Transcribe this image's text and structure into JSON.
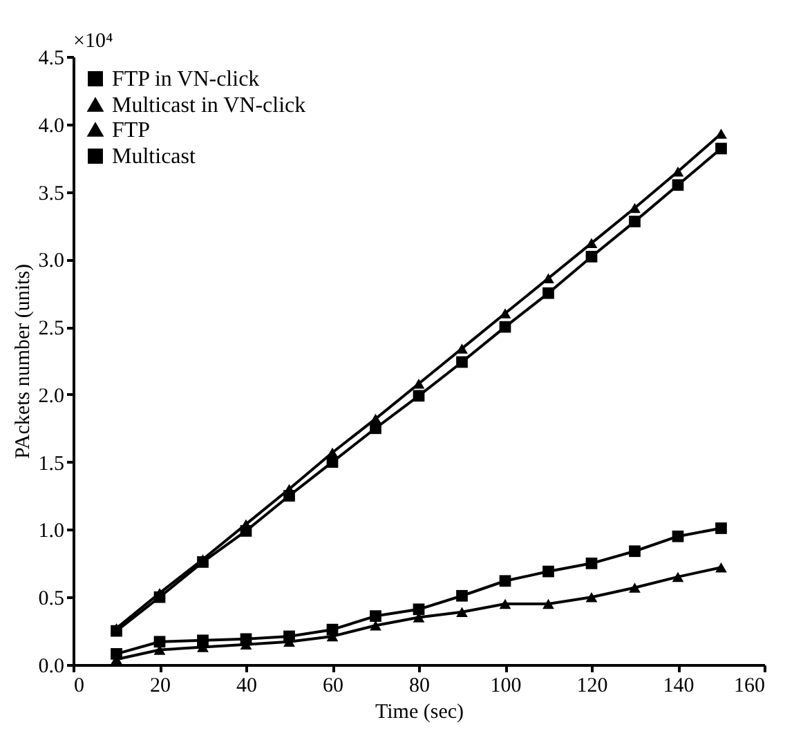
{
  "chart_data": {
    "type": "line",
    "xlabel": "Time (sec)",
    "ylabel": "PAckets number (units)",
    "annotations": [
      "×10⁴"
    ],
    "x": [
      10,
      20,
      30,
      40,
      50,
      60,
      70,
      80,
      90,
      100,
      110,
      120,
      130,
      140,
      150
    ],
    "series": [
      {
        "name": "FTP in VN-click",
        "color": "#000000",
        "marker": "square",
        "values": [
          0.25,
          0.5,
          0.76,
          0.99,
          1.25,
          1.5,
          1.75,
          1.99,
          2.24,
          2.5,
          2.75,
          3.02,
          3.28,
          3.55,
          3.82
        ]
      },
      {
        "name": "Multicast in VN-click",
        "color": "#000000",
        "marker": "triangle",
        "values": [
          0.04,
          0.11,
          0.13,
          0.15,
          0.17,
          0.21,
          0.29,
          0.35,
          0.39,
          0.45,
          0.45,
          0.5,
          0.57,
          0.65,
          0.72
        ]
      },
      {
        "name": "FTP",
        "color": "#000000",
        "marker": "triangle",
        "values": [
          0.27,
          0.53,
          0.78,
          1.04,
          1.3,
          1.57,
          1.82,
          2.08,
          2.34,
          2.6,
          2.86,
          3.12,
          3.38,
          3.65,
          3.93
        ]
      },
      {
        "name": "Multicast",
        "color": "#000000",
        "marker": "square",
        "values": [
          0.08,
          0.17,
          0.18,
          0.19,
          0.21,
          0.26,
          0.36,
          0.41,
          0.51,
          0.62,
          0.69,
          0.75,
          0.84,
          0.95,
          1.01
        ]
      }
    ],
    "xlim": [
      0,
      160
    ],
    "xticks": [
      0,
      20,
      40,
      60,
      80,
      100,
      120,
      140,
      160
    ],
    "ylim": [
      0,
      4.5
    ],
    "yticks": [
      {
        "value": 0,
        "label": "0.0"
      },
      0.5,
      {
        "value": 1,
        "label": "1.0"
      },
      1.5,
      {
        "value": 2,
        "label": "2.0"
      },
      2.5,
      {
        "value": 3,
        "label": "3.0"
      },
      3.5,
      {
        "value": 4,
        "label": "4.0"
      },
      4.5
    ],
    "grid": false,
    "legend": "top left",
    "line_style": "solid"
  }
}
